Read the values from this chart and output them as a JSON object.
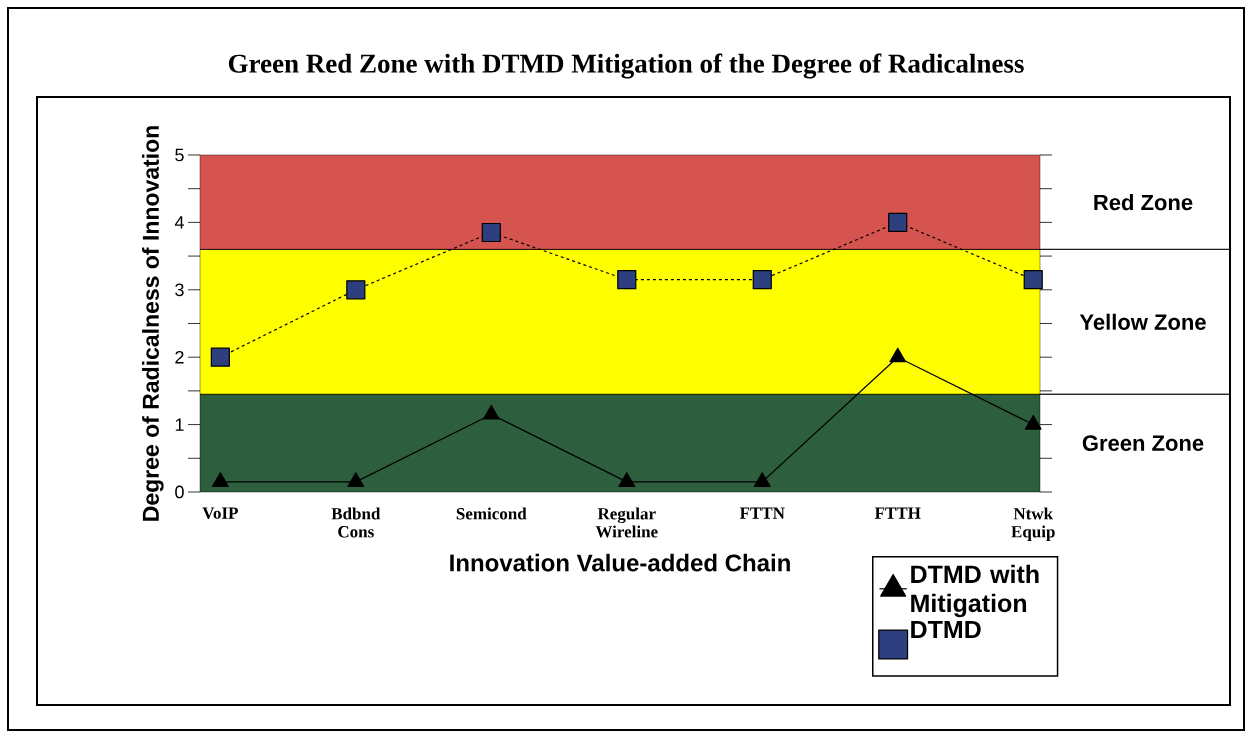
{
  "chart_data": {
    "type": "line",
    "title": "Green Red Zone with DTMD Mitigation  of the Degree of Radicalness",
    "xlabel": "Innovation Value-added Chain",
    "ylabel": "Degree of Radicalness  of Innovation",
    "categories": [
      "VoIP",
      "Bdbnd Cons",
      "Semicond",
      "Regular Wireline",
      "FTTN",
      "FTTH",
      "Ntwk Equip"
    ],
    "ylim": [
      0,
      5
    ],
    "yticks": [
      0,
      1,
      2,
      3,
      4,
      5
    ],
    "legend": "bottom right",
    "grid": false,
    "series": [
      {
        "name": "DTMD with Mitigation",
        "color": "#000000",
        "marker": "triangle",
        "line_style": "solid",
        "values": [
          0.15,
          0.15,
          1.15,
          0.15,
          0.15,
          2,
          1
        ]
      },
      {
        "name": "DTMD",
        "color": "#2e3f7f",
        "marker": "square",
        "line_style": "dashed",
        "values": [
          2,
          3,
          3.85,
          3.15,
          3.15,
          4,
          3.15
        ]
      }
    ],
    "bands": [
      {
        "axis": "y",
        "from": 0,
        "to": 1.45,
        "label": "Green Zone",
        "color": "#2d5e3d"
      },
      {
        "axis": "y",
        "from": 1.45,
        "to": 3.6,
        "label": "Yellow Zone",
        "color": "#ffff00"
      },
      {
        "axis": "y",
        "from": 3.6,
        "to": 5,
        "label": "Red Zone",
        "color": "#d65450"
      }
    ]
  }
}
